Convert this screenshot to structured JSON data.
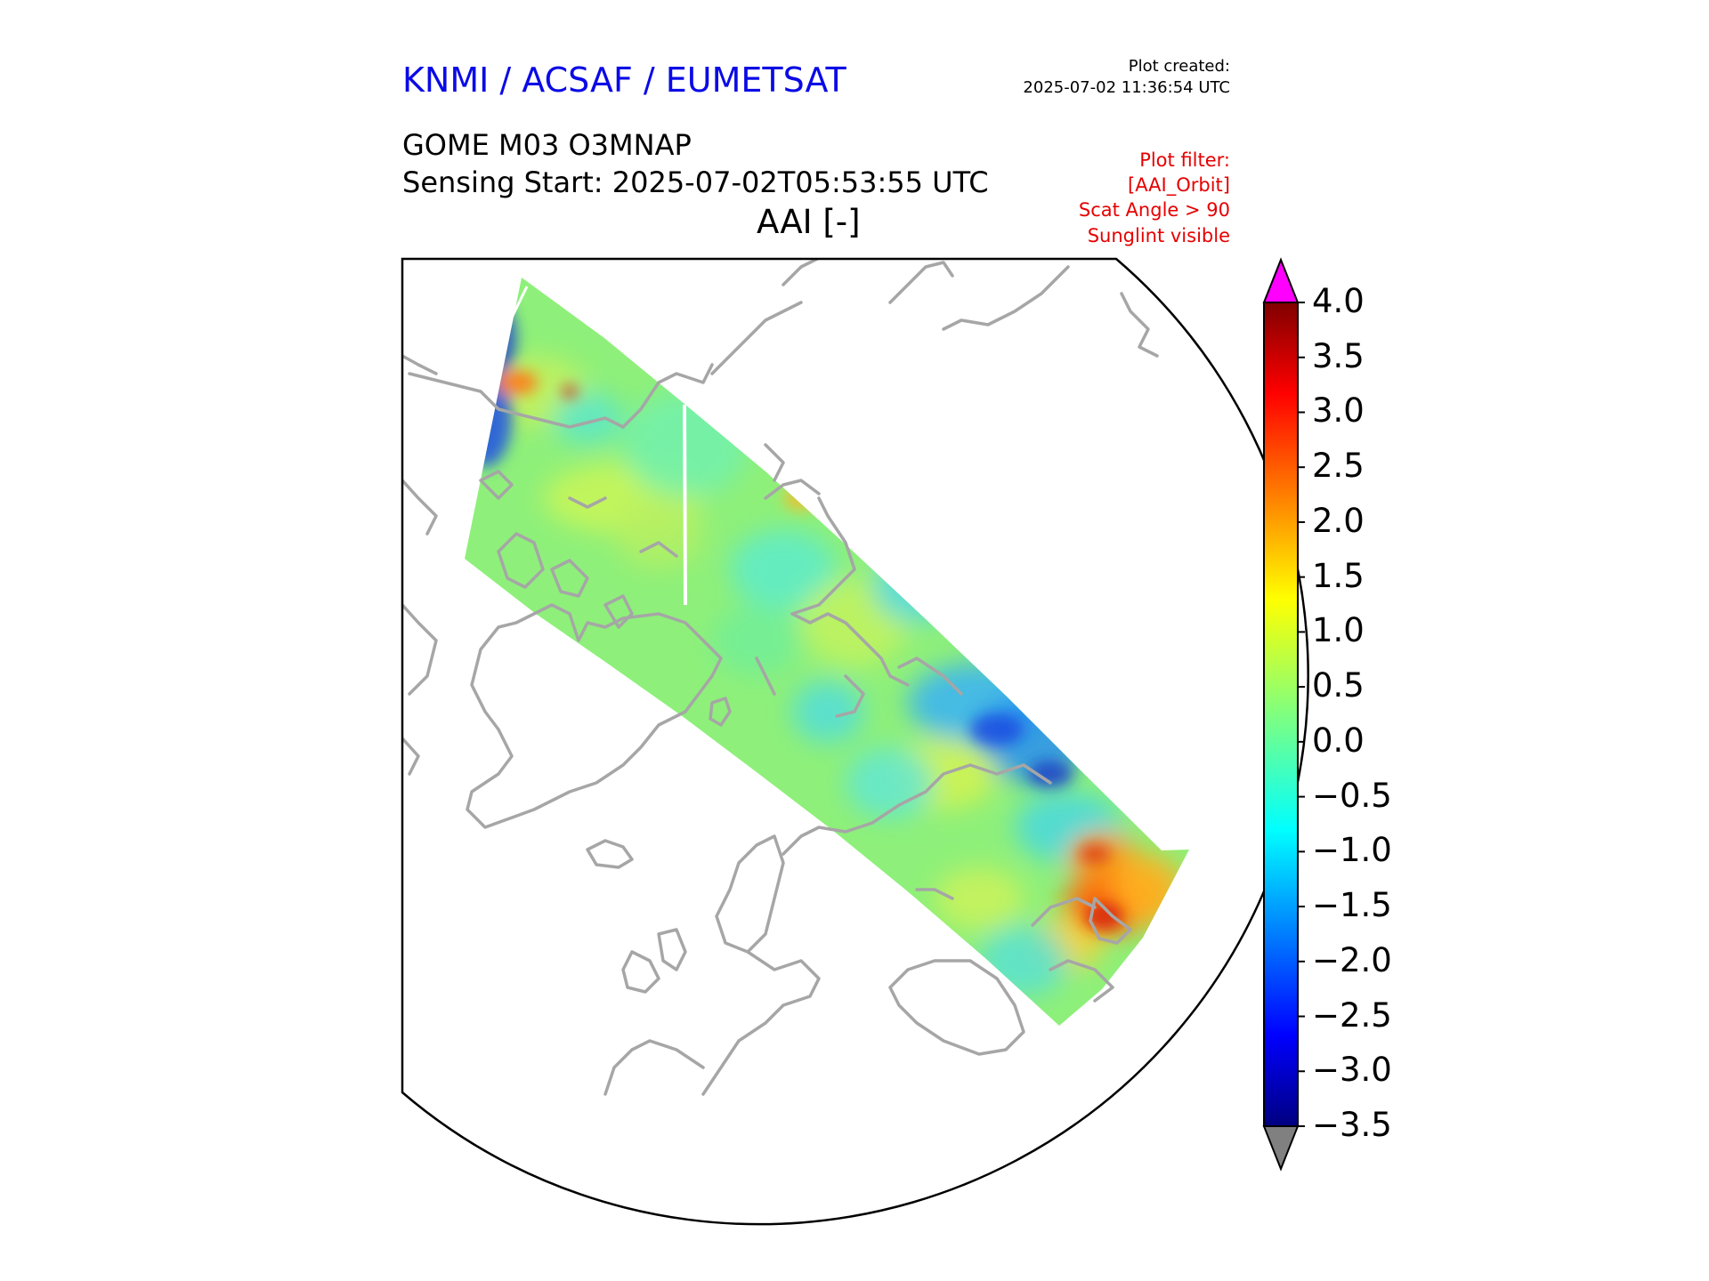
{
  "header": {
    "organization": "KNMI / ACSAF / EUMETSAT",
    "plot_created_label": "Plot created:",
    "plot_created_time": "2025-07-02 11:36:54 UTC",
    "product": "GOME M03 O3MNAP",
    "sensing_start": "Sensing Start: 2025-07-02T05:53:55 UTC",
    "variable": "AAI [-]",
    "filter_lines": [
      "Plot filter:",
      "[AAI_Orbit]",
      "Scat Angle > 90",
      "Sunglint visible"
    ]
  },
  "colors": {
    "organization": "#0a0ae6",
    "filter": "#e60000",
    "coastline": "#a6a6a6",
    "over_extend": "#ff00ff",
    "under_extend": "#808080"
  },
  "colorbar": {
    "min": -3.5,
    "max": 4.0,
    "ticks": [
      "4.0",
      "3.5",
      "3.0",
      "2.5",
      "2.0",
      "1.5",
      "1.0",
      "0.5",
      "0.0",
      "−0.5",
      "−1.0",
      "−1.5",
      "−2.0",
      "−2.5",
      "−3.0",
      "−3.5"
    ],
    "colormap": "jet",
    "extend": "both"
  },
  "map": {
    "projection": "north-polar-stereographic",
    "swath_features": [
      "low AAI over Greenland Sea",
      "negative AAI over central Siberia",
      "elevated AAI (about 2.5 to 3.5) over south-east Asia"
    ]
  }
}
